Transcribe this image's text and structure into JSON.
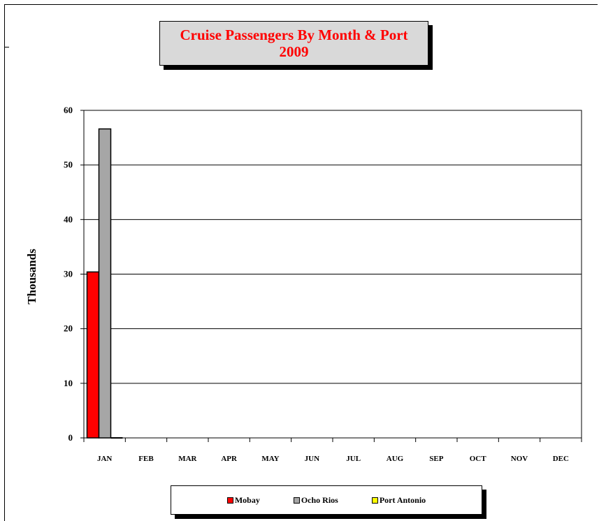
{
  "chart_data": {
    "type": "bar",
    "title": [
      "Cruise Passengers By Month & Port",
      "2009"
    ],
    "ylabel": "Thousands",
    "xlabel": "",
    "ylim": [
      0,
      60
    ],
    "yticks": [
      "0",
      "10",
      "20",
      "30",
      "40",
      "50",
      "60"
    ],
    "categories": [
      "JAN",
      "FEB",
      "MAR",
      "APR",
      "MAY",
      "JUN",
      "JUL",
      "AUG",
      "SEP",
      "OCT",
      "NOV",
      "DEC"
    ],
    "series": [
      {
        "name": "Mobay",
        "color": "#ff0000",
        "values": [
          30.4,
          0,
          0,
          0,
          0,
          0,
          0,
          0,
          0,
          0,
          0,
          0
        ]
      },
      {
        "name": "Ocho Rios",
        "color": "#a6a6a6",
        "values": [
          56.6,
          0,
          0,
          0,
          0,
          0,
          0,
          0,
          0,
          0,
          0,
          0
        ]
      },
      {
        "name": "Port Antonio",
        "color": "#ffff00",
        "values": [
          0,
          0,
          0,
          0,
          0,
          0,
          0,
          0,
          0,
          0,
          0,
          0
        ]
      }
    ],
    "grid": true,
    "legend": "bottom"
  }
}
